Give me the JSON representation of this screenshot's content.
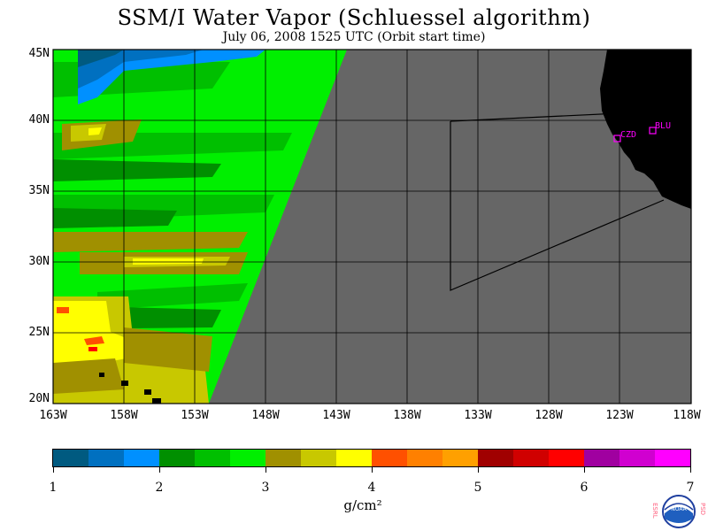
{
  "title": "SSM/I Water Vapor (Schluessel algorithm)",
  "subtitle": "July 06, 2008  1525 UTC  (Orbit start time)",
  "latitude_labels": [
    "45N",
    "40N",
    "35N",
    "30N",
    "25N",
    "20N"
  ],
  "longitude_labels": [
    "163W",
    "158W",
    "153W",
    "148W",
    "143W",
    "138W",
    "133W",
    "128W",
    "123W",
    "118W"
  ],
  "stations": [
    {
      "label": "CZD",
      "lat": 38.6,
      "lon": -123.2
    },
    {
      "label": "BLU",
      "lat": 39.2,
      "lon": -121.3
    }
  ],
  "colorbar": {
    "colors": [
      "#005a80",
      "#0070c0",
      "#0090ff",
      "#008f00",
      "#00bf00",
      "#00ef00",
      "#a09000",
      "#c8c800",
      "#ffff00",
      "#ff5000",
      "#ff8000",
      "#ffa000",
      "#a00000",
      "#d00000",
      "#ff0000",
      "#a000a0",
      "#d000d0",
      "#ff00ff"
    ],
    "ticks": [
      "1",
      "2",
      "3",
      "4",
      "5",
      "6",
      "7"
    ],
    "unit": "g/cm²"
  },
  "logo_text": {
    "left": "ESRL",
    "right": "PSD",
    "center": "NOAA"
  },
  "map": {
    "lat_range": [
      20,
      45
    ],
    "lon_range": [
      -163,
      -118
    ],
    "ocean_nodata_color": "#666666",
    "land_color": "#000000"
  }
}
